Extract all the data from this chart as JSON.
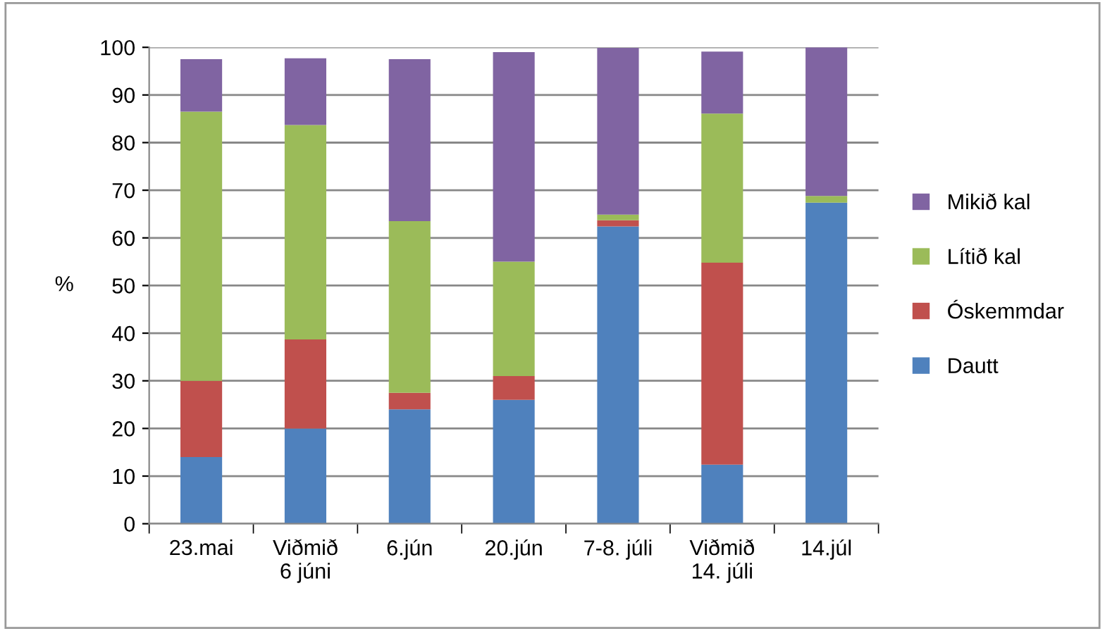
{
  "chart_data": {
    "type": "bar",
    "stacked": true,
    "ylabel": "%",
    "categories": [
      "23.mai",
      "Viðmið\n6 júni",
      "6.jún",
      "20.jún",
      "7-8. júli",
      "Viðmið\n14. júli",
      "14.júl"
    ],
    "series": [
      {
        "name": "Dautt",
        "color": "#4f81bd",
        "values": [
          14,
          20,
          24,
          26,
          62.4,
          12.4,
          67.4
        ]
      },
      {
        "name": "Óskemmdar",
        "color": "#c0504d",
        "values": [
          16,
          18.7,
          3.5,
          5,
          1.3,
          42.4,
          0
        ]
      },
      {
        "name": "Lítið kal",
        "color": "#9bbb59",
        "values": [
          56.5,
          45,
          36,
          24,
          1.2,
          31.3,
          1.4
        ]
      },
      {
        "name": "Mikið kal",
        "color": "#8064a2",
        "values": [
          11,
          14,
          34,
          44,
          35,
          13,
          31.2
        ]
      }
    ],
    "ylim": [
      0,
      100
    ],
    "yticks": [
      0,
      10,
      20,
      30,
      40,
      50,
      60,
      70,
      80,
      90,
      100
    ],
    "grid": "y",
    "legend": "right"
  }
}
